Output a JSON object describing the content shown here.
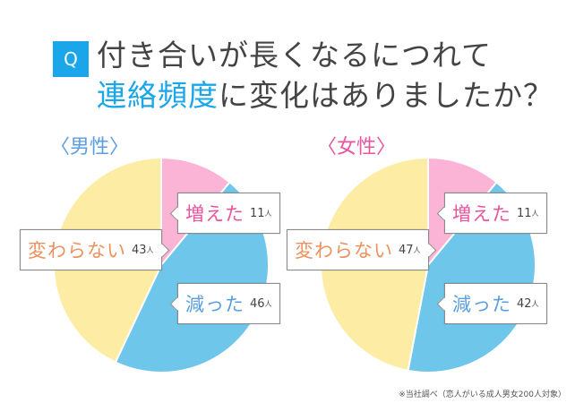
{
  "header": {
    "badge": "Q",
    "title_line1": "付き合いが長くなるにつれて",
    "title_line2_highlight": "連絡頻度",
    "title_line2_rest": "に変化はありましたか？",
    "accent_color": "#1aa6e8"
  },
  "groups": [
    {
      "label": "〈男性〉",
      "label_color": "#5b9ee0",
      "slices": [
        {
          "label": "増えた",
          "value": "11",
          "unit": "人"
        },
        {
          "label": "減った",
          "value": "46",
          "unit": "人"
        },
        {
          "label": "変わらない",
          "value": "43",
          "unit": "人"
        }
      ]
    },
    {
      "label": "〈女性〉",
      "label_color": "#e8559f",
      "slices": [
        {
          "label": "増えた",
          "value": "11",
          "unit": "人"
        },
        {
          "label": "減った",
          "value": "42",
          "unit": "人"
        },
        {
          "label": "変わらない",
          "value": "47",
          "unit": "人"
        }
      ]
    }
  ],
  "colors": {
    "increased": "#fbb3d6",
    "decreased": "#6ec6ea",
    "unchanged": "#fdeca3",
    "increased_text": "#e8559f",
    "decreased_text": "#5b9ee0",
    "unchanged_text": "#ee9160"
  },
  "footnote": "※当社調べ（恋人がいる成人男女200人対象）",
  "chart_data": [
    {
      "type": "pie",
      "title": "〈男性〉",
      "categories": [
        "増えた",
        "減った",
        "変わらない"
      ],
      "values": [
        11,
        46,
        43
      ],
      "unit": "人",
      "colors": [
        "#fbb3d6",
        "#6ec6ea",
        "#fdeca3"
      ],
      "start_angle": "12 o'clock, clockwise"
    },
    {
      "type": "pie",
      "title": "〈女性〉",
      "categories": [
        "増えた",
        "減った",
        "変わらない"
      ],
      "values": [
        11,
        42,
        47
      ],
      "unit": "人",
      "colors": [
        "#fbb3d6",
        "#6ec6ea",
        "#fdeca3"
      ],
      "start_angle": "12 o'clock, clockwise"
    }
  ]
}
